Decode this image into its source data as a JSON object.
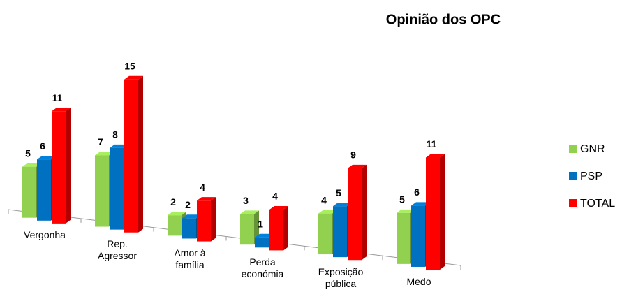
{
  "chart_data": {
    "type": "bar3d",
    "title": "Opinião dos OPC",
    "categories": [
      "Vergonha",
      "Rep. Agressor",
      "Amor à família",
      "Perda económia",
      "Exposição pública",
      "Medo"
    ],
    "series": [
      {
        "name": "GNR",
        "color": "#92d050",
        "values": [
          5,
          7,
          2,
          3,
          4,
          5
        ]
      },
      {
        "name": "PSP",
        "color": "#0070c0",
        "values": [
          6,
          8,
          2,
          1,
          5,
          6
        ]
      },
      {
        "name": "TOTAL",
        "color": "#ff0000",
        "values": [
          11,
          15,
          4,
          4,
          9,
          11
        ]
      }
    ],
    "legend": "right"
  }
}
